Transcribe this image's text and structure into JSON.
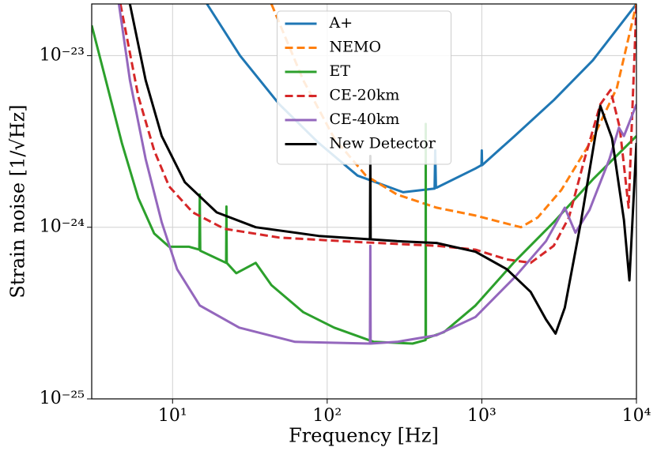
{
  "chart_data": {
    "type": "line",
    "xlabel": "Frequency [Hz]",
    "ylabel": "Strain noise [1/√Hz]",
    "xscale": "log",
    "yscale": "log",
    "grid": true,
    "legend": "upper center",
    "xlim": [
      3,
      10000
    ],
    "ylim": [
      1e-25,
      2e-23
    ],
    "xticks": [
      {
        "value": 10,
        "label": "10¹"
      },
      {
        "value": 100,
        "label": "10²"
      },
      {
        "value": 1000,
        "label": "10³"
      },
      {
        "value": 10000,
        "label": "10⁴"
      }
    ],
    "yticks": [
      {
        "value": 1e-25,
        "label": "10⁻²⁵"
      },
      {
        "value": 1e-24,
        "label": "10⁻²⁴"
      },
      {
        "value": 1e-23,
        "label": "10⁻²³"
      }
    ],
    "series": [
      {
        "name": "A+",
        "color": "#1f77b4",
        "linestyle": "solid",
        "x": [
          16.7,
          27.3,
          49,
          88,
          157,
          310,
          495,
          500,
          505,
          510,
          910,
          995,
          1000,
          1005,
          1630,
          2920,
          5230,
          10000
        ],
        "values": [
          2e-23,
          1e-23,
          5.2e-24,
          3.1e-24,
          2e-24,
          1.6e-24,
          1.68e-24,
          2.8e-24,
          1.7e-24,
          1.7e-24,
          2.2e-24,
          2.3e-24,
          2.8e-24,
          2.3e-24,
          3.4e-24,
          5.5e-24,
          9.4e-24,
          2e-23
        ]
      },
      {
        "name": "NEMO",
        "color": "#ff7f0e",
        "linestyle": "dashed",
        "x": [
          43.6,
          70,
          111,
          178,
          283,
          510,
          910,
          1280,
          1790,
          2300,
          3270,
          5230,
          7480,
          10000
        ],
        "values": [
          2e-23,
          7.2e-24,
          3.3e-24,
          2e-24,
          1.55e-24,
          1.3e-24,
          1.17e-24,
          1.08e-24,
          1e-24,
          1.14e-24,
          1.65e-24,
          3.3e-24,
          6.5e-24,
          2e-23
        ]
      },
      {
        "name": "ET",
        "color": "#2ca02c",
        "linestyle": "solid",
        "x": [
          3,
          3.7,
          4.7,
          6,
          7.6,
          9.5,
          12.8,
          14.9,
          15,
          15.1,
          18.5,
          22.2,
          22.3,
          22.4,
          25.8,
          34.5,
          43.6,
          70,
          111,
          200,
          357,
          433,
          434,
          435,
          570,
          910,
          1630,
          2920,
          5230,
          10000
        ],
        "values": [
          1.5e-23,
          7.2e-24,
          3.1e-24,
          1.48e-24,
          9.2e-25,
          7.7e-25,
          7.7e-25,
          7.4e-25,
          1.55e-24,
          7.3e-25,
          6.7e-25,
          6.2e-25,
          1.32e-24,
          6.2e-25,
          5.4e-25,
          6.2e-25,
          4.6e-25,
          3.2e-25,
          2.6e-25,
          2.15e-25,
          2.1e-25,
          2.2e-25,
          4e-24,
          2.25e-25,
          2.45e-25,
          3.5e-25,
          6.3e-25,
          1.07e-24,
          1.9e-24,
          3.4e-24
        ]
      },
      {
        "name": "CE-20km",
        "color": "#d62728",
        "linestyle": "dashed",
        "x": [
          4.6,
          6,
          7.6,
          9.5,
          13.5,
          21.6,
          49,
          157,
          510,
          910,
          1450,
          2070,
          2920,
          3660,
          4620,
          5840,
          6800,
          7800,
          8900,
          10000
        ],
        "values": [
          2e-23,
          5.8e-24,
          2.8e-24,
          1.73e-24,
          1.22e-24,
          9.8e-25,
          8.7e-25,
          8.2e-25,
          7.8e-25,
          7.4e-25,
          6.5e-25,
          6.2e-25,
          7.8e-25,
          1.14e-24,
          2.5e-24,
          5.2e-24,
          6.3e-24,
          3.8e-24,
          1.3e-24,
          2e-23
        ]
      },
      {
        "name": "CE-40km",
        "color": "#9467bd",
        "linestyle": "solid",
        "x": [
          4.5,
          5.3,
          6.7,
          8.5,
          10.7,
          15,
          27,
          62,
          189,
          190,
          191,
          283,
          510,
          910,
          1630,
          2600,
          3440,
          4030,
          4970,
          6690,
          7700,
          8300,
          10000
        ],
        "values": [
          2e-23,
          7.2e-24,
          2.5e-24,
          1.07e-24,
          5.7e-25,
          3.5e-25,
          2.6e-25,
          2.15e-25,
          2.1e-25,
          7.8e-25,
          2.1e-25,
          2.15e-25,
          2.35e-25,
          3e-25,
          5.1e-25,
          8.3e-25,
          1.3e-24,
          9.3e-25,
          1.26e-24,
          2.5e-24,
          3.8e-24,
          3.4e-24,
          5.2e-24
        ]
      },
      {
        "name": "New Detector",
        "color": "#000000",
        "linestyle": "solid",
        "x": [
          5.3,
          6.7,
          8.5,
          12,
          19.3,
          34.5,
          88,
          189,
          190,
          191,
          283,
          510,
          910,
          1450,
          2070,
          2600,
          3000,
          3440,
          4370,
          5230,
          5840,
          6950,
          8300,
          9000,
          10000
        ],
        "values": [
          2e-23,
          7.2e-24,
          3.4e-24,
          1.83e-24,
          1.22e-24,
          1e-24,
          8.9e-25,
          8.5e-25,
          2.6e-24,
          8.5e-25,
          8.3e-25,
          8.1e-25,
          7.2e-25,
          5.7e-25,
          4.2e-25,
          2.9e-25,
          2.4e-25,
          3.4e-25,
          1.07e-24,
          2.8e-24,
          5.1e-24,
          3.3e-24,
          1.1e-24,
          4.9e-25,
          3.1e-24
        ]
      }
    ]
  }
}
